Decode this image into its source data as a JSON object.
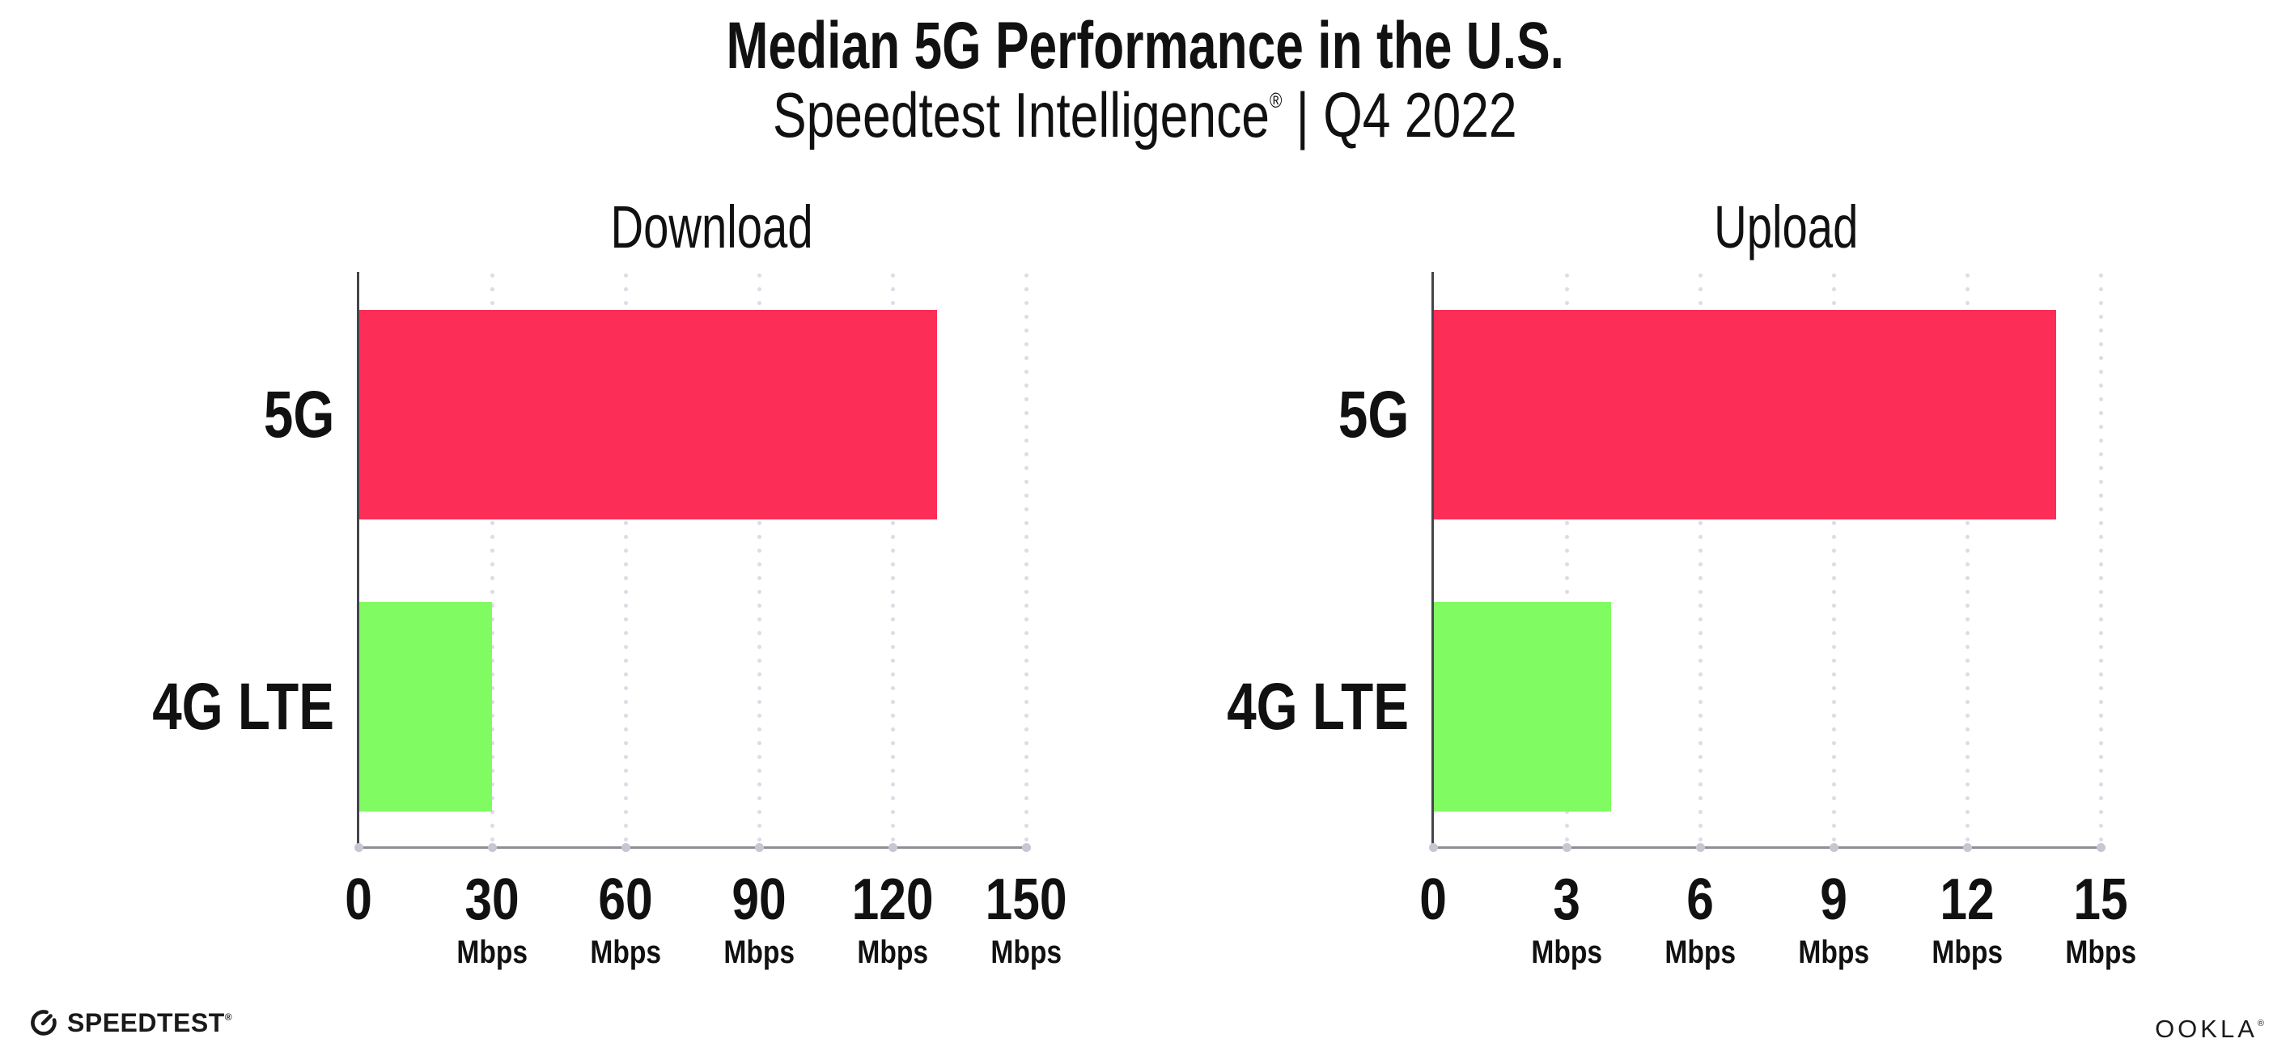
{
  "header": {
    "title": "Median 5G Performance in the U.S.",
    "subtitle_brand": "Speedtest Intelligence",
    "subtitle_mark": "®",
    "subtitle_rest": " | Q4 2022"
  },
  "chart_data": [
    {
      "type": "bar",
      "orientation": "horizontal",
      "title": "Download",
      "categories": [
        "5G",
        "4G LTE"
      ],
      "values": [
        130,
        30
      ],
      "unit": "Mbps",
      "xlim": [
        0,
        150
      ],
      "grid": "vertical-dotted",
      "legend": "none",
      "xticks": [
        {
          "value": 0,
          "label": "0",
          "unit": ""
        },
        {
          "value": 30,
          "label": "30",
          "unit": "Mbps"
        },
        {
          "value": 60,
          "label": "60",
          "unit": "Mbps"
        },
        {
          "value": 90,
          "label": "90",
          "unit": "Mbps"
        },
        {
          "value": 120,
          "label": "120",
          "unit": "Mbps"
        },
        {
          "value": 150,
          "label": "150",
          "unit": "Mbps"
        }
      ]
    },
    {
      "type": "bar",
      "orientation": "horizontal",
      "title": "Upload",
      "categories": [
        "5G",
        "4G LTE"
      ],
      "values": [
        14,
        4
      ],
      "unit": "Mbps",
      "xlim": [
        0,
        15
      ],
      "grid": "vertical-dotted",
      "legend": "none",
      "xticks": [
        {
          "value": 0,
          "label": "0",
          "unit": ""
        },
        {
          "value": 3,
          "label": "3",
          "unit": "Mbps"
        },
        {
          "value": 6,
          "label": "6",
          "unit": "Mbps"
        },
        {
          "value": 9,
          "label": "9",
          "unit": "Mbps"
        },
        {
          "value": 12,
          "label": "12",
          "unit": "Mbps"
        },
        {
          "value": 15,
          "label": "15",
          "unit": "Mbps"
        }
      ]
    }
  ],
  "colors": {
    "bars": [
      "#FC2E57",
      "#80FB61"
    ],
    "bar_5g": "#FC2E57",
    "bar_4g_lte": "#80FB61",
    "axis_line": "#8E8E96",
    "y_axis_line": "#45454C",
    "grid_dot": "#DCDDE6",
    "tick_dot": "#C6C7D2",
    "text": "#111111",
    "logo": "#1A1A1A",
    "background": "#FFFFFF"
  },
  "footer": {
    "speedtest_label": "SPEEDTEST",
    "speedtest_mark": "®",
    "ookla_label": "OOKLA",
    "ookla_mark": "®"
  }
}
